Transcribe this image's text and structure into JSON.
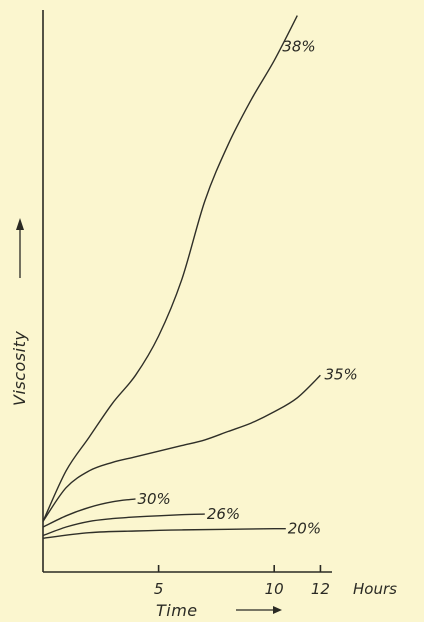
{
  "chart_data": {
    "type": "line",
    "xlabel": "Time",
    "ylabel": "Viscosity",
    "x_unit": "Hours",
    "xlim": [
      0,
      12.5
    ],
    "ylim": [
      0,
      100
    ],
    "x_ticks": [
      {
        "value": 5,
        "label": "5"
      },
      {
        "value": 10,
        "label": "10"
      },
      {
        "value": 12,
        "label": "12"
      }
    ],
    "grid": false,
    "series": [
      {
        "name": "38%",
        "x": [
          0,
          1,
          2,
          3,
          4,
          5,
          6,
          7,
          8,
          9,
          10,
          11
        ],
        "y": [
          9,
          18,
          24,
          30,
          35,
          42,
          52,
          66,
          76,
          84,
          91,
          99
        ]
      },
      {
        "name": "35%",
        "x": [
          0,
          1,
          2,
          3,
          4,
          5,
          6,
          7,
          8,
          9,
          10,
          11,
          12
        ],
        "y": [
          9,
          15,
          18,
          19.5,
          20.5,
          21.5,
          22.5,
          23.5,
          25,
          26.5,
          28.5,
          31,
          35
        ]
      },
      {
        "name": "30%",
        "x": [
          0,
          1,
          2,
          3,
          4
        ],
        "y": [
          8,
          10,
          11.5,
          12.5,
          13
        ]
      },
      {
        "name": "26%",
        "x": [
          0,
          1,
          2,
          3,
          4,
          5,
          6,
          7
        ],
        "y": [
          6.5,
          8,
          9,
          9.5,
          9.8,
          10,
          10.2,
          10.3
        ]
      },
      {
        "name": "20%",
        "x": [
          0,
          2,
          4,
          6,
          8,
          10,
          10.5
        ],
        "y": [
          6,
          7,
          7.3,
          7.5,
          7.6,
          7.7,
          7.7
        ]
      }
    ]
  }
}
